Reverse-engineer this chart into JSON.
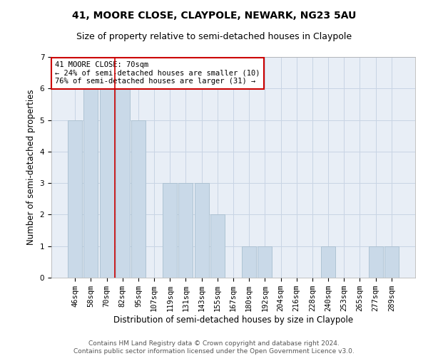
{
  "title": "41, MOORE CLOSE, CLAYPOLE, NEWARK, NG23 5AU",
  "subtitle": "Size of property relative to semi-detached houses in Claypole",
  "xlabel": "Distribution of semi-detached houses by size in Claypole",
  "ylabel": "Number of semi-detached properties",
  "categories": [
    "46sqm",
    "58sqm",
    "70sqm",
    "82sqm",
    "95sqm",
    "107sqm",
    "119sqm",
    "131sqm",
    "143sqm",
    "155sqm",
    "167sqm",
    "180sqm",
    "192sqm",
    "204sqm",
    "216sqm",
    "228sqm",
    "240sqm",
    "253sqm",
    "265sqm",
    "277sqm",
    "289sqm"
  ],
  "values": [
    5,
    6,
    6,
    6,
    5,
    0,
    3,
    3,
    3,
    2,
    0,
    1,
    1,
    0,
    0,
    0,
    1,
    0,
    0,
    1,
    1
  ],
  "bar_color": "#c9d9e8",
  "bar_edgecolor": "#a8bfcf",
  "vline_x": 2.5,
  "vline_color": "#cc0000",
  "annotation_text": "41 MOORE CLOSE: 70sqm\n← 24% of semi-detached houses are smaller (10)\n76% of semi-detached houses are larger (31) →",
  "annotation_box_facecolor": "#ffffff",
  "annotation_box_edgecolor": "#cc0000",
  "ylim": [
    0,
    7
  ],
  "yticks": [
    0,
    1,
    2,
    3,
    4,
    5,
    6,
    7
  ],
  "grid_color": "#c8d4e4",
  "background_color": "#e8eef6",
  "footer": "Contains HM Land Registry data © Crown copyright and database right 2024.\nContains public sector information licensed under the Open Government Licence v3.0.",
  "title_fontsize": 10,
  "subtitle_fontsize": 9,
  "xlabel_fontsize": 8.5,
  "ylabel_fontsize": 8.5,
  "tick_fontsize": 7.5,
  "footer_fontsize": 6.5,
  "annot_fontsize": 7.5
}
